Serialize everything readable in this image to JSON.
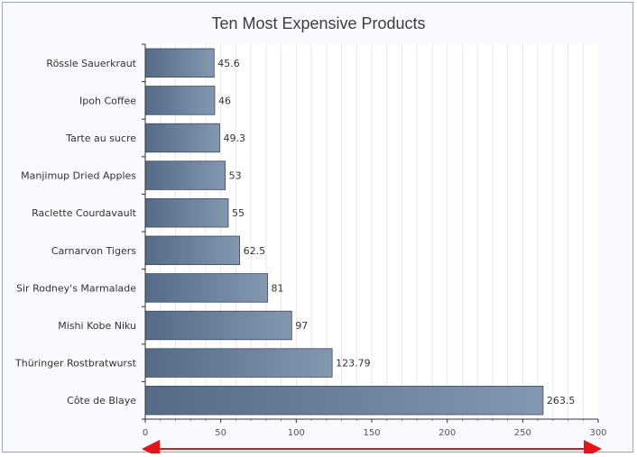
{
  "chart_data": {
    "type": "bar",
    "orientation": "horizontal",
    "title": "Ten Most Expensive Products",
    "xlabel": "",
    "ylabel": "",
    "categories": [
      "Rössle Sauerkraut",
      "Ipoh Coffee",
      "Tarte au sucre",
      "Manjimup Dried Apples",
      "Raclette Courdavault",
      "Carnarvon Tigers",
      "Sir Rodney's Marmalade",
      "Mishi Kobe Niku",
      "Thüringer Rostbratwurst",
      "Côte de Blaye"
    ],
    "values": [
      45.6,
      46,
      49.3,
      53,
      55,
      62.5,
      81,
      97,
      123.79,
      263.5
    ],
    "value_labels": [
      "45.6",
      "46",
      "49.3",
      "53",
      "55",
      "62.5",
      "81",
      "97",
      "123.79",
      "263.5"
    ],
    "xlim": [
      0,
      300
    ],
    "xticks": [
      "0",
      "50",
      "100",
      "150",
      "200",
      "250",
      "300"
    ],
    "grid": true,
    "legend": "none",
    "colors": {
      "bar_dark": "#566b86",
      "bar_light": "#8497b0",
      "bar_stroke": "#3a4a5e",
      "arrow": "#e8141c",
      "grid": "#e4e8ee"
    }
  }
}
